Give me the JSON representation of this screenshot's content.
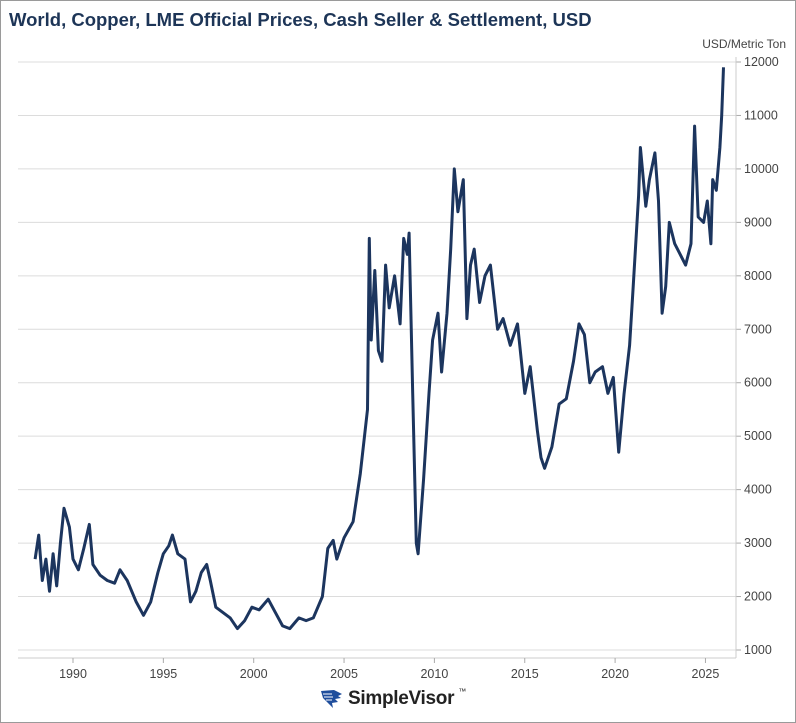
{
  "title": "World, Copper, LME Official Prices, Cash Seller & Settlement, USD",
  "brand": {
    "name": "SimpleVisor",
    "tm": "™"
  },
  "colors": {
    "line": "#1c355e",
    "grid": "#dcdcdc",
    "title": "#1d3557"
  },
  "chart_data": {
    "type": "line",
    "title": "World, Copper, LME Official Prices, Cash Seller & Settlement, USD",
    "ylabel": "USD/Metric Ton",
    "xlim": [
      1987.0,
      2026.8
    ],
    "ylim": [
      1000,
      12000
    ],
    "y_axis_side": "right",
    "grid": "horizontal",
    "xticks": [
      1990,
      1995,
      2000,
      2005,
      2010,
      2015,
      2020,
      2025
    ],
    "yticks": [
      1000,
      2000,
      3000,
      4000,
      5000,
      6000,
      7000,
      8000,
      9000,
      10000,
      11000,
      12000
    ],
    "series": [
      {
        "points": [
          [
            1987.9,
            2700
          ],
          [
            1988.1,
            3150
          ],
          [
            1988.3,
            2300
          ],
          [
            1988.5,
            2700
          ],
          [
            1988.7,
            2100
          ],
          [
            1988.9,
            2800
          ],
          [
            1989.1,
            2200
          ],
          [
            1989.3,
            3000
          ],
          [
            1989.5,
            3650
          ],
          [
            1989.8,
            3300
          ],
          [
            1990.0,
            2700
          ],
          [
            1990.3,
            2500
          ],
          [
            1990.6,
            2900
          ],
          [
            1990.9,
            3350
          ],
          [
            1991.1,
            2600
          ],
          [
            1991.5,
            2400
          ],
          [
            1991.9,
            2300
          ],
          [
            1992.3,
            2250
          ],
          [
            1992.6,
            2500
          ],
          [
            1993.0,
            2300
          ],
          [
            1993.5,
            1900
          ],
          [
            1993.9,
            1650
          ],
          [
            1994.3,
            1900
          ],
          [
            1994.7,
            2450
          ],
          [
            1995.0,
            2800
          ],
          [
            1995.3,
            2950
          ],
          [
            1995.5,
            3150
          ],
          [
            1995.8,
            2800
          ],
          [
            1996.2,
            2700
          ],
          [
            1996.5,
            1900
          ],
          [
            1996.8,
            2100
          ],
          [
            1997.1,
            2450
          ],
          [
            1997.4,
            2600
          ],
          [
            1997.6,
            2300
          ],
          [
            1997.9,
            1800
          ],
          [
            1998.3,
            1700
          ],
          [
            1998.7,
            1600
          ],
          [
            1999.1,
            1400
          ],
          [
            1999.5,
            1550
          ],
          [
            1999.9,
            1800
          ],
          [
            2000.3,
            1750
          ],
          [
            2000.8,
            1950
          ],
          [
            2001.2,
            1700
          ],
          [
            2001.6,
            1450
          ],
          [
            2002.0,
            1400
          ],
          [
            2002.5,
            1600
          ],
          [
            2002.9,
            1550
          ],
          [
            2003.3,
            1600
          ],
          [
            2003.8,
            2000
          ],
          [
            2004.1,
            2900
          ],
          [
            2004.4,
            3050
          ],
          [
            2004.6,
            2700
          ],
          [
            2005.0,
            3100
          ],
          [
            2005.5,
            3400
          ],
          [
            2005.9,
            4300
          ],
          [
            2006.3,
            5500
          ],
          [
            2006.4,
            8700
          ],
          [
            2006.5,
            6800
          ],
          [
            2006.7,
            8100
          ],
          [
            2006.9,
            6600
          ],
          [
            2007.1,
            6400
          ],
          [
            2007.3,
            8200
          ],
          [
            2007.5,
            7400
          ],
          [
            2007.8,
            8000
          ],
          [
            2008.1,
            7100
          ],
          [
            2008.3,
            8700
          ],
          [
            2008.5,
            8400
          ],
          [
            2008.6,
            8800
          ],
          [
            2008.8,
            5800
          ],
          [
            2009.0,
            3000
          ],
          [
            2009.1,
            2800
          ],
          [
            2009.4,
            4200
          ],
          [
            2009.7,
            5800
          ],
          [
            2009.9,
            6800
          ],
          [
            2010.2,
            7300
          ],
          [
            2010.4,
            6200
          ],
          [
            2010.7,
            7300
          ],
          [
            2010.9,
            8500
          ],
          [
            2011.1,
            10000
          ],
          [
            2011.3,
            9200
          ],
          [
            2011.6,
            9800
          ],
          [
            2011.8,
            7200
          ],
          [
            2012.0,
            8200
          ],
          [
            2012.2,
            8500
          ],
          [
            2012.5,
            7500
          ],
          [
            2012.8,
            8000
          ],
          [
            2013.1,
            8200
          ],
          [
            2013.5,
            7000
          ],
          [
            2013.8,
            7200
          ],
          [
            2014.2,
            6700
          ],
          [
            2014.6,
            7100
          ],
          [
            2015.0,
            5800
          ],
          [
            2015.3,
            6300
          ],
          [
            2015.7,
            5100
          ],
          [
            2015.9,
            4600
          ],
          [
            2016.1,
            4400
          ],
          [
            2016.5,
            4800
          ],
          [
            2016.9,
            5600
          ],
          [
            2017.3,
            5700
          ],
          [
            2017.7,
            6400
          ],
          [
            2018.0,
            7100
          ],
          [
            2018.3,
            6900
          ],
          [
            2018.6,
            6000
          ],
          [
            2018.9,
            6200
          ],
          [
            2019.3,
            6300
          ],
          [
            2019.6,
            5800
          ],
          [
            2019.9,
            6100
          ],
          [
            2020.2,
            4700
          ],
          [
            2020.5,
            5800
          ],
          [
            2020.8,
            6700
          ],
          [
            2021.0,
            7800
          ],
          [
            2021.3,
            9500
          ],
          [
            2021.4,
            10400
          ],
          [
            2021.7,
            9300
          ],
          [
            2021.9,
            9800
          ],
          [
            2022.2,
            10300
          ],
          [
            2022.4,
            9400
          ],
          [
            2022.6,
            7300
          ],
          [
            2022.8,
            7800
          ],
          [
            2023.0,
            9000
          ],
          [
            2023.3,
            8600
          ],
          [
            2023.6,
            8400
          ],
          [
            2023.9,
            8200
          ],
          [
            2024.2,
            8600
          ],
          [
            2024.4,
            10800
          ],
          [
            2024.6,
            9100
          ],
          [
            2024.9,
            9000
          ],
          [
            2025.1,
            9400
          ],
          [
            2025.3,
            8600
          ],
          [
            2025.4,
            9800
          ],
          [
            2025.6,
            9600
          ],
          [
            2025.8,
            10400
          ],
          [
            2025.9,
            11000
          ],
          [
            2026.0,
            11900
          ]
        ]
      }
    ]
  }
}
